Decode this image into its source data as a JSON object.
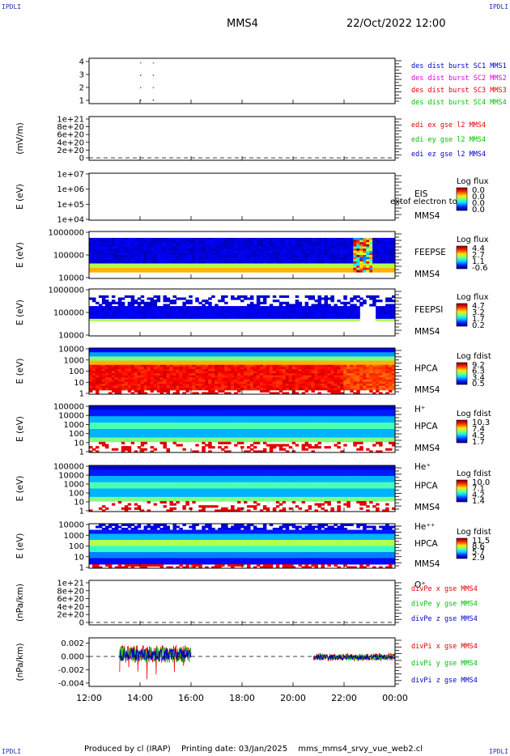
{
  "header": {
    "corner_tl": "IPDLI",
    "corner_tr": "IPDLI",
    "corner_bl": "IPDLI",
    "corner_br": "IPDLI",
    "title": "MMS4",
    "date": "22/Oct/2022 12:00"
  },
  "footer": {
    "produced": "Produced by cl (IRAP)",
    "printing": "Printing date: 03/Jan/2025",
    "file": "mms_mms4_srvy_vue_web2.cl"
  },
  "colors": {
    "red": "#e00000",
    "magenta": "#e000e0",
    "green": "#00c000",
    "blue": "#0000c8",
    "spec_bg": "#0000cc"
  },
  "chart_data": {
    "type": "heatmap",
    "x_tick_labels": [
      "12:00",
      "14:00",
      "16:00",
      "18:00",
      "20:00",
      "22:00",
      "00:00"
    ],
    "x_hours": [
      12,
      24
    ],
    "panels": [
      {
        "id": "burst",
        "kind": "flags",
        "ylabel": "",
        "yticks": [
          "1",
          "2",
          "3",
          "4"
        ],
        "labels": [
          {
            "text": "des dist burst SC1 MMS1",
            "color": "#0000c8"
          },
          {
            "text": "des dist burst SC2 MMS2",
            "color": "#e000e0"
          },
          {
            "text": "des dist burst SC3 MMS3",
            "color": "#e00000"
          },
          {
            "text": "des dist burst SC4 MMS4",
            "color": "#00c000"
          }
        ],
        "flag_times": [
          14.0,
          14.5
        ]
      },
      {
        "id": "edi",
        "kind": "lines",
        "ylabel": "(mV/m)",
        "yticks": [
          "0",
          "2e+20",
          "4e+20",
          "6e+20",
          "8e+20",
          "1e+21"
        ],
        "labels": [
          {
            "text": "edi ex gse l2 MMS4",
            "color": "#e00000"
          },
          {
            "text": "edi ey gse l2 MMS4",
            "color": "#00c000"
          },
          {
            "text": "edi ez gse l2 MMS4",
            "color": "#0000c8"
          }
        ]
      },
      {
        "id": "eis",
        "kind": "spectrogram",
        "ylabel": "E (eV)",
        "yticks": [
          "1e+04",
          "1e+05",
          "1e+06",
          "1e+07"
        ],
        "side": [
          "EIS",
          "MMS4"
        ],
        "overlay": "extof electron to",
        "cbar": {
          "title": "Log flux",
          "ticks": [
            "0.0",
            "0.0",
            "0.0",
            "0.0"
          ]
        }
      },
      {
        "id": "feeps_e",
        "kind": "spectrogram",
        "ylabel": "E (eV)",
        "yticks": [
          "10000",
          "100000",
          "1000000"
        ],
        "side": [
          "FEEPSE",
          "MMS4"
        ],
        "cbar": {
          "title": "Log flux",
          "ticks": [
            "4.4",
            "2.7",
            "1.1",
            "-0.6"
          ]
        }
      },
      {
        "id": "feeps_i",
        "kind": "spectrogram",
        "ylabel": "E (eV)",
        "yticks": [
          "10000",
          "100000",
          "1000000"
        ],
        "side": [
          "FEEPSI",
          "MMS4"
        ],
        "cbar": {
          "title": "Log flux",
          "ticks": [
            "4.7",
            "3.2",
            "1.7",
            "0.2"
          ]
        }
      },
      {
        "id": "hpca_h",
        "kind": "spectrogram",
        "ylabel": "E (eV)",
        "yticks": [
          "1",
          "10",
          "100",
          "1000",
          "10000"
        ],
        "side": [
          "HPCA",
          "MMS4",
          "H⁺"
        ],
        "cbar": {
          "title": "Log fdist",
          "ticks": [
            "9.2",
            "6.3",
            "3.4",
            "0.5"
          ]
        }
      },
      {
        "id": "hpca_he",
        "kind": "spectrogram",
        "ylabel": "E (eV)",
        "yticks": [
          "1",
          "10",
          "100",
          "1000",
          "10000",
          "100000"
        ],
        "side": [
          "HPCA",
          "MMS4",
          "He⁺"
        ],
        "cbar": {
          "title": "Log fdist",
          "ticks": [
            "10.3",
            "7.4",
            "4.5",
            "1.7"
          ]
        }
      },
      {
        "id": "hpca_hepp",
        "kind": "spectrogram",
        "ylabel": "E (eV)",
        "yticks": [
          "1",
          "10",
          "100",
          "1000",
          "10000",
          "100000"
        ],
        "side": [
          "HPCA",
          "MMS4",
          "He⁺⁺"
        ],
        "cbar": {
          "title": "Log fdist",
          "ticks": [
            "10.0",
            "7.1",
            "4.2",
            "1.4"
          ]
        }
      },
      {
        "id": "hpca_o",
        "kind": "spectrogram",
        "ylabel": "E (eV)",
        "yticks": [
          "1",
          "10",
          "100",
          "1000",
          "10000"
        ],
        "side": [
          "HPCA",
          "MMS4",
          "O⁺"
        ],
        "cbar": {
          "title": "Log fdist",
          "ticks": [
            "11.5",
            "8.6",
            "5.7",
            "2.9"
          ]
        }
      },
      {
        "id": "divpe",
        "kind": "lines",
        "ylabel": "(nPa/km)",
        "yticks": [
          "0",
          "2e+20",
          "4e+20",
          "6e+20",
          "8e+20",
          "1e+21"
        ],
        "labels": [
          {
            "text": "divPe x gse MMS4",
            "color": "#e00000"
          },
          {
            "text": "divPe y gse MMS4",
            "color": "#00c000"
          },
          {
            "text": "divPe z gse MMS4",
            "color": "#0000c8"
          }
        ]
      },
      {
        "id": "divpi",
        "kind": "lines",
        "ylabel": "(nPa/km)",
        "yticks": [
          "-0.004",
          "-0.002",
          "0.000",
          "0.002"
        ],
        "ylim": [
          -0.0045,
          0.0028
        ],
        "labels": [
          {
            "text": "divPi x gse MMS4",
            "color": "#e00000"
          },
          {
            "text": "divPi y gse MMS4",
            "color": "#00c000"
          },
          {
            "text": "divPi z gse MMS4",
            "color": "#0000c8"
          }
        ],
        "intervals": [
          [
            13.2,
            16.0
          ],
          [
            20.8,
            24.0
          ]
        ]
      }
    ]
  }
}
